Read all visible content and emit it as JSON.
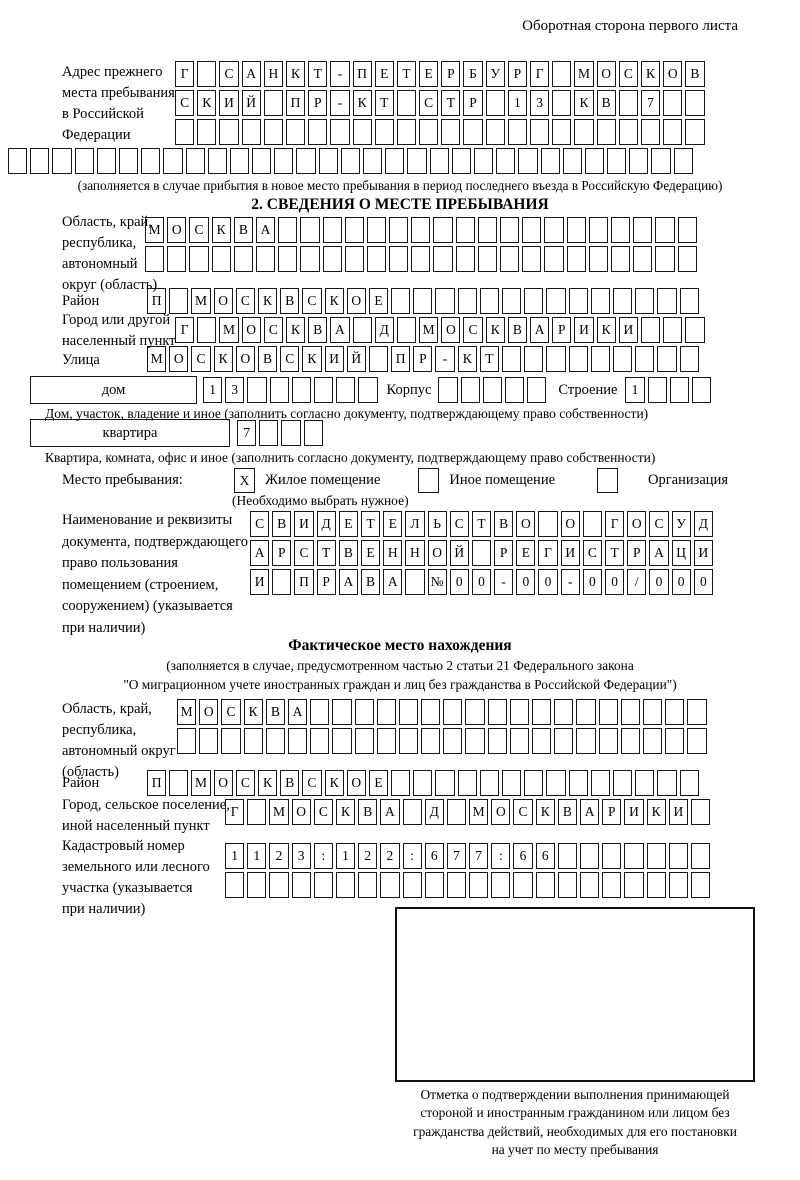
{
  "header_note": "Оборотная сторона первого листа",
  "prev_address": {
    "label_lines": [
      "Адрес прежнего",
      "места пребывания",
      "в Российской",
      "Федерации"
    ],
    "rows": [
      {
        "chars": "Г САНКТ-ПЕТЕРБУРГ МОСКОВ",
        "count": 24
      },
      {
        "chars": "СКИЙ ПР-КТ СТР 13 КВ 7",
        "count": 24
      },
      {
        "chars": "",
        "count": 24
      },
      {
        "chars": "",
        "count": 31
      }
    ],
    "note": "(заполняется в случае прибытия в новое место пребывания в период последнего въезда в Российскую Федерацию)"
  },
  "section2": {
    "title": "2. СВЕДЕНИЯ О МЕСТЕ ПРЕБЫВАНИЯ",
    "oblast": {
      "label_lines": [
        "Область, край,",
        "республика,",
        "автономный",
        "округ (область)"
      ],
      "rows": [
        {
          "chars": "МОСКВА",
          "count": 25
        },
        {
          "chars": "",
          "count": 25
        }
      ]
    },
    "raion": {
      "label": "Район",
      "row": {
        "chars": "П МОСКВСКОЕ",
        "count": 25
      }
    },
    "gorod": {
      "label_lines": [
        "Город или другой",
        "населенный пункт"
      ],
      "row": {
        "chars": "Г МОСКВА Д МОСКВАРИКИ",
        "count": 24
      }
    },
    "ulitsa": {
      "label": "Улица",
      "row": {
        "chars": "МОСКОВСКИЙ ПР-КТ",
        "count": 25
      }
    },
    "dom": {
      "wide_label": "дом",
      "cells": {
        "chars": "13",
        "count": 8
      },
      "korpus_label": "Корпус",
      "korpus_cells": {
        "chars": "",
        "count": 5
      },
      "stroenie_label": "Строение",
      "stroenie_cells": {
        "chars": "1",
        "count": 4
      },
      "caption": "Дом, участок, владение и иное (заполнить согласно документу, подтверждающему право собственности)"
    },
    "kvartira": {
      "wide_label": "квартира",
      "cells": {
        "chars": "7",
        "count": 4
      },
      "caption": "Квартира, комната, офис и иное (заполнить согласно документу, подтверждающему право собственности)"
    },
    "mesto": {
      "label": "Место пребывания:",
      "cb_zhiloe": "X",
      "zhiloe_label": "Жилое помещение",
      "cb_inoe": "",
      "inoe_label": "Иное помещение",
      "cb_org": "",
      "org_label": "Организация",
      "note": "(Необходимо выбрать нужное)"
    },
    "doc": {
      "label_lines": [
        "Наименование и реквизиты",
        "документа, подтверждающего",
        "право пользования",
        "помещением (строением,",
        "сооружением) (указывается",
        "при наличии)"
      ],
      "rows": [
        {
          "chars": "СВИДЕТЕЛЬСТВО О ГОСУД",
          "count": 21
        },
        {
          "chars": "АРСТВЕННОЙ РЕГИСТРАЦИ",
          "count": 21
        },
        {
          "chars": "И ПРАВА №00-00-00/000",
          "count": 21
        }
      ]
    }
  },
  "factual": {
    "title": "Фактическое место нахождения",
    "subtitle_lines": [
      "(заполняется в случае, предусмотренном частью 2 статьи 21 Федерального закона",
      "\"О миграционном учете иностранных граждан и лиц без гражданства в Российской Федерации\")"
    ],
    "oblast": {
      "label_lines": [
        "Область, край,",
        "республика,",
        "автономный округ",
        "(область)"
      ],
      "rows": [
        {
          "chars": "МОСКВА",
          "count": 24
        },
        {
          "chars": "",
          "count": 24
        }
      ]
    },
    "raion": {
      "label": "Район",
      "row": {
        "chars": "П МОСКВСКОЕ",
        "count": 25
      }
    },
    "gorod": {
      "label_lines": [
        "Город, сельское поселение,",
        "иной населенный пункт"
      ],
      "row": {
        "chars": "Г МОСКВА Д МОСКВАРИКИ",
        "count": 22
      }
    },
    "kadastr": {
      "label_lines": [
        "Кадастровый номер",
        "земельного или лесного",
        "участка (указывается",
        "при наличии)"
      ],
      "rows": [
        {
          "chars": "1123:122:677:66",
          "count": 22
        },
        {
          "chars": "",
          "count": 22
        }
      ]
    },
    "mark": {
      "caption_lines": [
        "Отметка о подтверждении выполнения принимающей",
        "стороной и иностранным гражданином или лицом без",
        "гражданства действий, необходимых для его постановки",
        "на учет по месту пребывания"
      ]
    }
  }
}
